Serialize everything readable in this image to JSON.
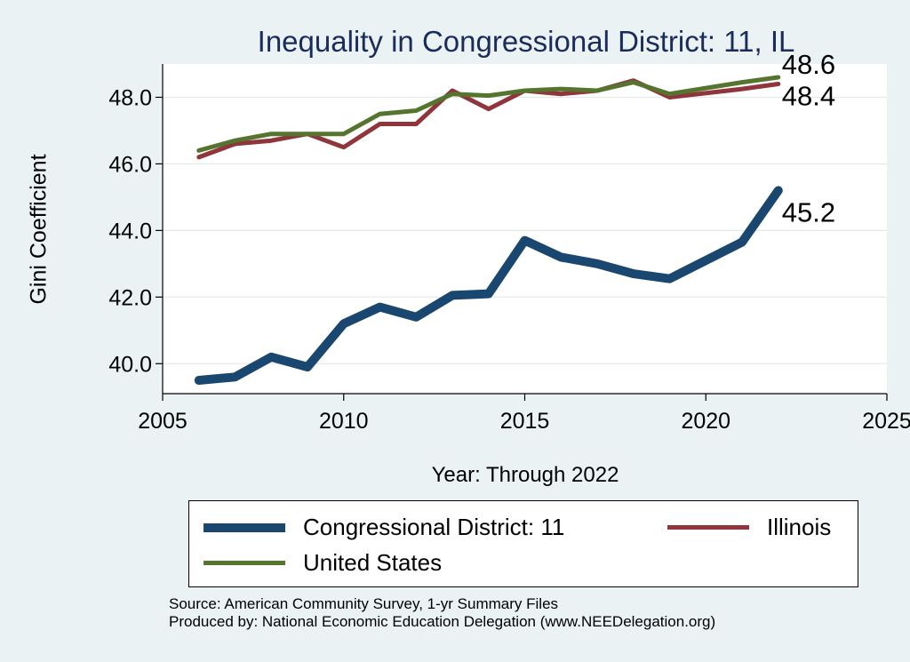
{
  "chart_data": {
    "type": "line",
    "title": "Inequality in Congressional District:  11, IL",
    "xlabel": "Year: Through 2022",
    "ylabel": "Gini Coefficient",
    "xlim": [
      2005,
      2025
    ],
    "ylim": [
      39.1,
      49.0
    ],
    "xticks": [
      2005,
      2010,
      2015,
      2020,
      2025
    ],
    "yticks": [
      40.0,
      42.0,
      44.0,
      46.0,
      48.0
    ],
    "ytick_labels": [
      "40.0",
      "42.0",
      "44.0",
      "46.0",
      "48.0"
    ],
    "grid": true,
    "legend_position": "bottom",
    "series": [
      {
        "name": "Congressional District:  11",
        "color": "#1a476f",
        "x": [
          2006,
          2007,
          2008,
          2009,
          2010,
          2011,
          2012,
          2013,
          2014,
          2015,
          2016,
          2017,
          2018,
          2019,
          2021,
          2022
        ],
        "y": [
          39.5,
          39.6,
          40.2,
          39.9,
          41.2,
          41.7,
          41.4,
          42.05,
          42.1,
          43.7,
          43.2,
          43.0,
          42.7,
          42.55,
          43.65,
          45.2
        ],
        "end_label": "45.2"
      },
      {
        "name": "Illinois",
        "color": "#90353b",
        "x": [
          2006,
          2007,
          2008,
          2009,
          2010,
          2011,
          2012,
          2013,
          2014,
          2015,
          2016,
          2017,
          2018,
          2019,
          2021,
          2022
        ],
        "y": [
          46.2,
          46.6,
          46.7,
          46.9,
          46.5,
          47.2,
          47.2,
          48.2,
          47.65,
          48.2,
          48.1,
          48.2,
          48.5,
          48.0,
          48.25,
          48.4
        ],
        "end_label": "48.4"
      },
      {
        "name": "United States",
        "color": "#55752f",
        "x": [
          2006,
          2007,
          2008,
          2009,
          2010,
          2011,
          2012,
          2013,
          2014,
          2015,
          2016,
          2017,
          2018,
          2019,
          2021,
          2022
        ],
        "y": [
          46.4,
          46.7,
          46.9,
          46.9,
          46.9,
          47.5,
          47.6,
          48.1,
          48.05,
          48.2,
          48.25,
          48.2,
          48.45,
          48.1,
          48.45,
          48.6
        ],
        "end_label": "48.6"
      }
    ]
  },
  "legend": {
    "items": [
      "Congressional District:  11",
      "Illinois",
      "United States"
    ]
  },
  "footer": {
    "line1": "Source: American Community Survey, 1-yr Summary Files",
    "line2": "Produced by: National Economic Education Delegation (www.NEEDelegation.org)"
  }
}
